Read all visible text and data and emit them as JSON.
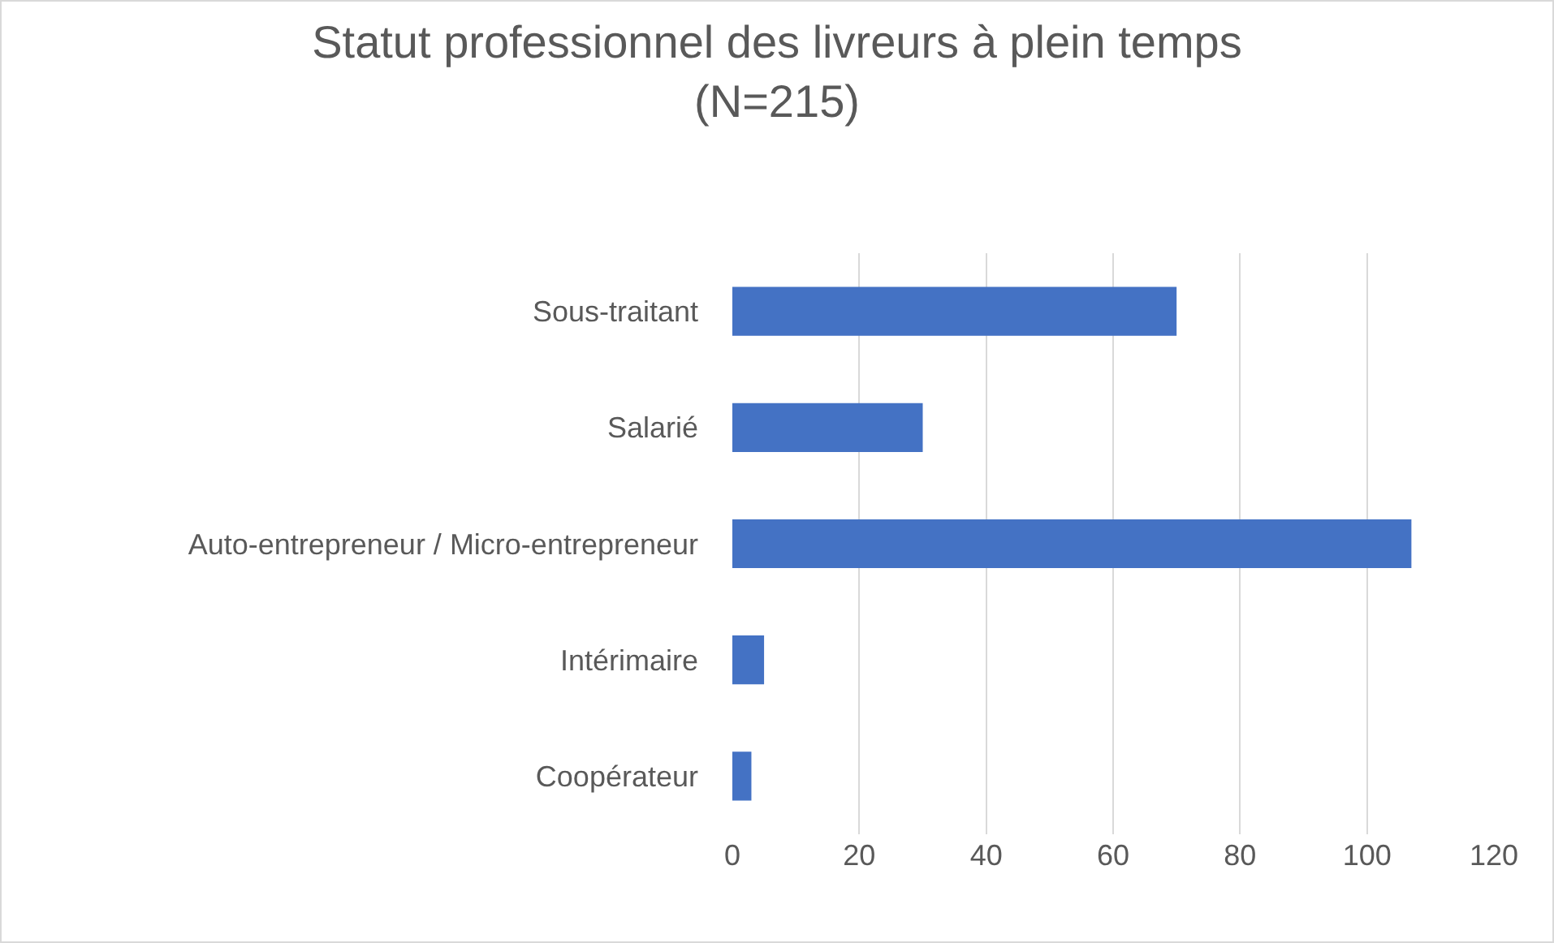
{
  "chart_data": {
    "type": "bar",
    "orientation": "horizontal",
    "title": "Statut professionnel des livreurs à plein temps\n(N=215)",
    "categories": [
      "Sous-traitant",
      "Salarié",
      "Auto-entrepreneur / Micro-entrepreneur",
      "Intérimaire",
      "Coopérateur"
    ],
    "values": [
      70,
      30,
      107,
      5,
      3
    ],
    "color": "#4472c4",
    "xlim": [
      0,
      120
    ],
    "xticks": [
      0,
      20,
      40,
      60,
      80,
      100,
      120
    ],
    "grid": "x"
  }
}
